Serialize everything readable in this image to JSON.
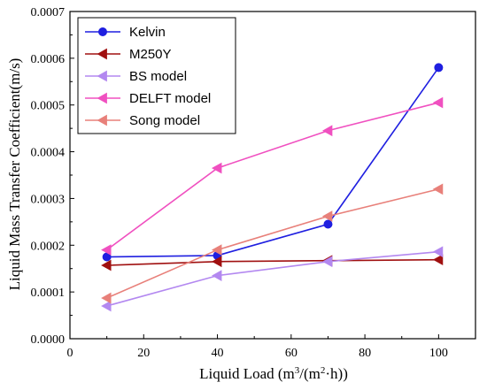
{
  "chart_data": {
    "type": "line",
    "xlabel": "Liquid Load (m",
    "xlabel_sup1": "3",
    "xlabel_mid": "/(m",
    "xlabel_sup2": "2",
    "xlabel_end": "·h))",
    "ylabel": "Liquid Mass Transfer Coefficient(m/s)",
    "xlim": [
      0,
      110
    ],
    "ylim": [
      0,
      0.0007
    ],
    "xticks": [
      "0",
      "20",
      "40",
      "60",
      "80",
      "100"
    ],
    "yticks": [
      "0.0000",
      "0.0001",
      "0.0002",
      "0.0003",
      "0.0004",
      "0.0005",
      "0.0006",
      "0.0007"
    ],
    "grid": false,
    "legend_position": "top-left",
    "x": [
      10,
      40,
      70,
      100
    ],
    "series": [
      {
        "name": "Kelvin",
        "color": "#1f1fe0",
        "marker": "circle",
        "values": [
          0.000175,
          0.000178,
          0.000245,
          0.00058
        ]
      },
      {
        "name": "M250Y",
        "color": "#a01010",
        "marker": "triangle-left",
        "values": [
          0.000157,
          0.000165,
          0.000167,
          0.000169
        ]
      },
      {
        "name": "BS model",
        "color": "#b388f0",
        "marker": "triangle-left",
        "values": [
          7e-05,
          0.000135,
          0.000165,
          0.000186
        ]
      },
      {
        "name": "DELFT model",
        "color": "#f050c0",
        "marker": "triangle-left",
        "values": [
          0.00019,
          0.000365,
          0.000445,
          0.000505
        ]
      },
      {
        "name": "Song model",
        "color": "#e8807a",
        "marker": "triangle-left",
        "values": [
          8.7e-05,
          0.00019,
          0.000262,
          0.00032
        ]
      }
    ]
  }
}
